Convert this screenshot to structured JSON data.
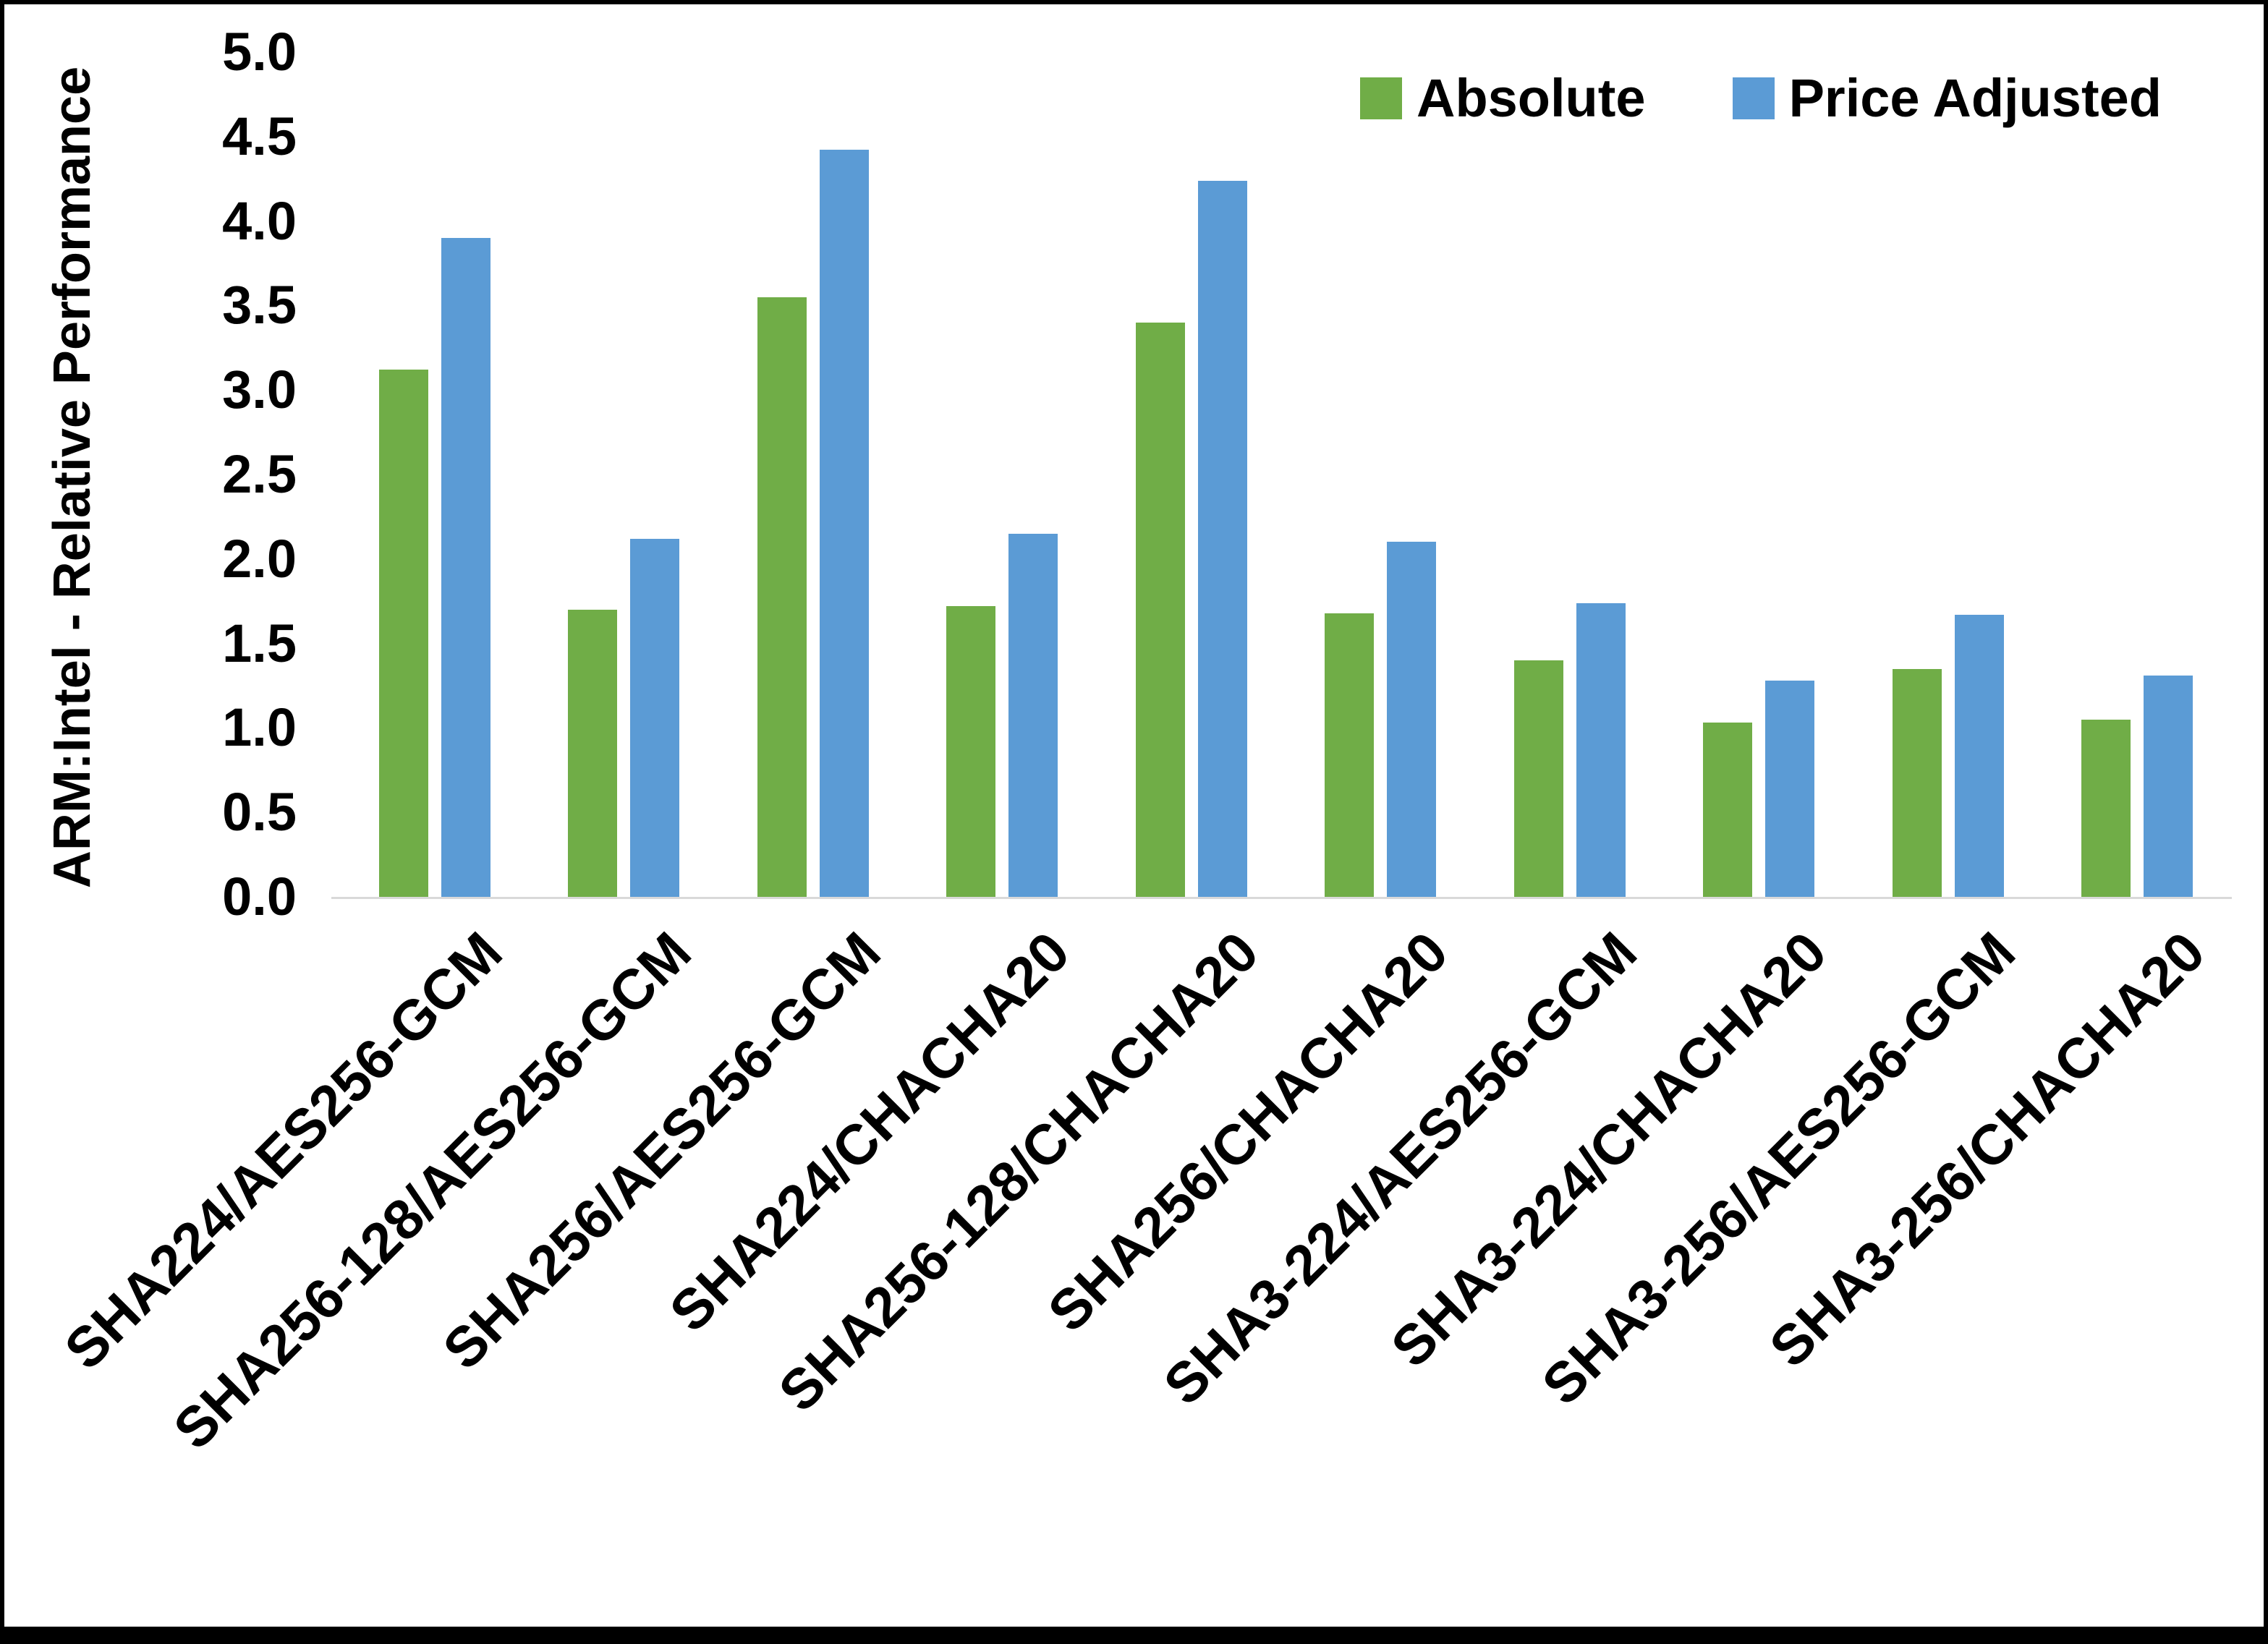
{
  "frame": {
    "background": "#FFFFFF",
    "border_color": "#000000"
  },
  "chart_data": {
    "type": "bar",
    "title": "",
    "xlabel": "",
    "ylabel": "ARM:Intel - Relative Performance",
    "ylim": [
      0,
      5
    ],
    "ytick_step": 0.5,
    "ytick_decimals": 1,
    "grid": false,
    "legend_position": "top-right",
    "axis_line_color": "#D9D9D9",
    "categories": [
      "SHA224/AES256-GCM",
      "SHA256-128/AES256-GCM",
      "SHA256/AES256-GCM",
      "SHA224/CHACHA20",
      "SHA256-128/CHACHA20",
      "SHA256/CHACHA20",
      "SHA3-224/AES256-GCM",
      "SHA3-224/CHACHA20",
      "SHA3-256/AES256-GCM",
      "SHA3-256/CHACHA20"
    ],
    "series": [
      {
        "name": "Absolute",
        "color": "#70AD47",
        "values": [
          3.12,
          1.7,
          3.55,
          1.72,
          3.4,
          1.68,
          1.4,
          1.03,
          1.35,
          1.05
        ]
      },
      {
        "name": "Price Adjusted",
        "color": "#5B9BD5",
        "values": [
          3.9,
          2.12,
          4.42,
          2.15,
          4.24,
          2.1,
          1.74,
          1.28,
          1.67,
          1.31
        ]
      }
    ]
  }
}
